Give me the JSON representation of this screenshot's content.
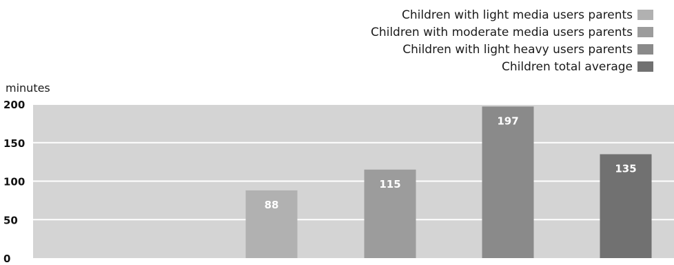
{
  "chart_data": {
    "type": "bar",
    "ylabel": "minutes",
    "ylim": [
      0,
      200
    ],
    "yticks": [
      0,
      50,
      100,
      150,
      200
    ],
    "grid": true,
    "legend_position": "top-right",
    "value_label_color": "#ffffff",
    "plot_background": "#d4d4d4",
    "series": [
      {
        "name": "Children with light media users parents",
        "value": 88,
        "color": "#b1b1b1"
      },
      {
        "name": "Children with moderate media users parents",
        "value": 115,
        "color": "#9c9c9c"
      },
      {
        "name": "Children with light heavy users parents",
        "value": 197,
        "color": "#8a8a8a"
      },
      {
        "name": "Children total average",
        "value": 135,
        "color": "#717171"
      }
    ]
  }
}
